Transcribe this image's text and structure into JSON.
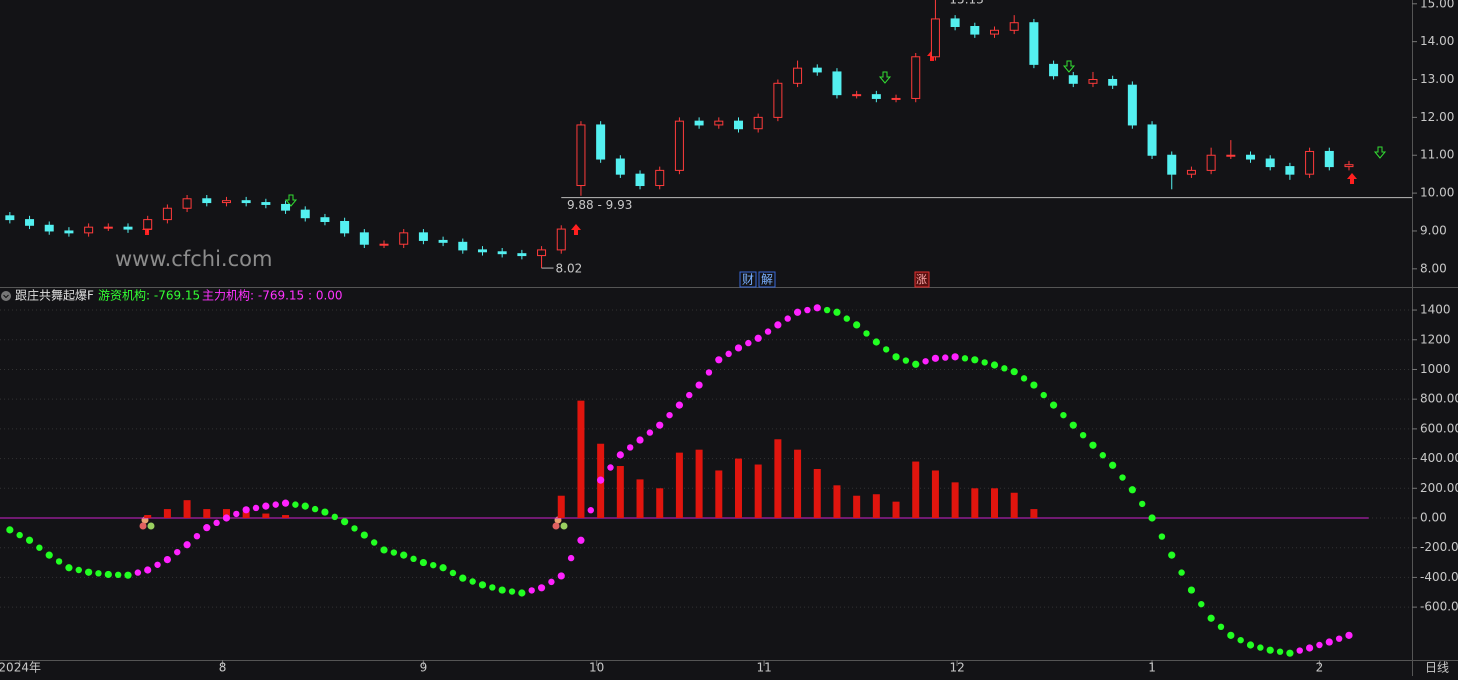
{
  "chart_data": [
    {
      "type": "candlestick",
      "open": [
        9.4,
        9.3,
        9.15,
        9.0,
        8.95,
        9.1,
        9.1,
        9.05,
        9.3,
        9.6,
        9.85,
        9.75,
        9.8,
        9.75,
        9.7,
        9.55,
        9.35,
        9.25,
        8.95,
        8.65,
        8.65,
        8.95,
        8.75,
        8.7,
        8.5,
        8.45,
        8.4,
        8.35,
        8.5,
        10.2,
        11.8,
        10.9,
        10.5,
        10.2,
        10.6,
        11.9,
        11.8,
        11.9,
        11.7,
        12.0,
        12.9,
        13.3,
        13.2,
        12.6,
        12.6,
        12.5,
        12.5,
        13.6,
        14.6,
        14.4,
        14.2,
        14.3,
        14.5,
        13.4,
        13.1,
        12.9,
        13.0,
        12.85,
        11.8,
        11.0,
        10.5,
        10.6,
        11.0,
        11.0,
        10.9,
        10.7,
        10.5,
        11.1,
        10.7
      ],
      "high": [
        9.5,
        9.4,
        9.25,
        9.1,
        9.2,
        9.2,
        9.2,
        9.4,
        9.7,
        9.95,
        9.95,
        9.9,
        9.9,
        9.85,
        9.8,
        9.65,
        9.45,
        9.35,
        9.05,
        8.75,
        9.05,
        9.05,
        8.85,
        8.8,
        8.6,
        8.55,
        8.5,
        8.6,
        9.15,
        11.9,
        11.9,
        11.0,
        10.6,
        10.7,
        12.0,
        12.0,
        12.0,
        12.0,
        12.1,
        13.0,
        13.5,
        13.4,
        13.3,
        12.7,
        12.7,
        12.6,
        13.7,
        15.13,
        14.7,
        14.5,
        14.4,
        14.7,
        14.6,
        13.5,
        13.2,
        13.2,
        13.1,
        12.95,
        11.9,
        11.1,
        10.7,
        11.2,
        11.4,
        11.1,
        11.0,
        10.8,
        11.2,
        11.2,
        10.85
      ],
      "low": [
        9.2,
        9.05,
        8.9,
        8.85,
        8.85,
        9.0,
        8.95,
        8.95,
        9.2,
        9.5,
        9.65,
        9.65,
        9.65,
        9.6,
        9.45,
        9.25,
        9.15,
        8.85,
        8.55,
        8.55,
        8.55,
        8.65,
        8.6,
        8.4,
        8.35,
        8.3,
        8.25,
        8.02,
        8.4,
        9.93,
        10.8,
        10.4,
        10.1,
        10.1,
        10.5,
        11.7,
        11.7,
        11.6,
        11.6,
        11.9,
        12.8,
        13.1,
        12.5,
        12.5,
        12.4,
        12.4,
        12.4,
        13.5,
        14.3,
        14.1,
        14.1,
        14.2,
        13.3,
        13.0,
        12.8,
        12.8,
        12.75,
        11.7,
        10.9,
        10.1,
        10.4,
        10.5,
        10.9,
        10.8,
        10.6,
        10.35,
        10.4,
        10.6,
        10.6
      ],
      "close": [
        9.3,
        9.15,
        9.0,
        8.95,
        9.1,
        9.1,
        9.05,
        9.3,
        9.6,
        9.85,
        9.75,
        9.8,
        9.75,
        9.7,
        9.55,
        9.35,
        9.25,
        8.95,
        8.65,
        8.65,
        8.95,
        8.75,
        8.7,
        8.5,
        8.45,
        8.4,
        8.35,
        8.5,
        9.05,
        11.8,
        10.9,
        10.5,
        10.2,
        10.6,
        11.9,
        11.8,
        11.9,
        11.7,
        12.0,
        12.9,
        13.3,
        13.2,
        12.6,
        12.6,
        12.5,
        12.5,
        13.6,
        14.6,
        14.4,
        14.2,
        14.3,
        14.5,
        13.4,
        13.1,
        12.9,
        13.0,
        12.85,
        11.8,
        11.0,
        10.5,
        10.6,
        11.0,
        11.0,
        10.9,
        10.7,
        10.5,
        11.1,
        10.7,
        10.75
      ],
      "up_color": "#ff3b3b",
      "down_color": "#54f0f0",
      "xlim": [
        -0.5,
        71.2
      ],
      "ylim": [
        7.52,
        15.1
      ],
      "yticks": [
        {
          "value": 8,
          "label": "8.00"
        },
        {
          "value": 9,
          "label": "9.00"
        },
        {
          "value": 10,
          "label": "10.00"
        },
        {
          "value": 11,
          "label": "11.00"
        },
        {
          "value": 12,
          "label": "12.00"
        },
        {
          "value": 13,
          "label": "13.00"
        },
        {
          "value": 14,
          "label": "14.00"
        },
        {
          "value": 15,
          "label": "15.00"
        }
      ],
      "gap_line": 9.88,
      "annotations": {
        "high": "15.13",
        "gap": "9.88 - 9.93",
        "low": "8.02"
      },
      "watermark": "www.cfchi.com",
      "markers": [
        "财",
        "解",
        "涨"
      ]
    },
    {
      "type": "combo",
      "title": "跟庄共舞起爆F",
      "legend": [
        "游资机构: -769.15",
        "主力机构: -769.15 : 0.00"
      ],
      "legend_colors": [
        "#33ff33",
        "#ff33ff"
      ],
      "bars": {
        "color": "#e0150e",
        "values": [
          null,
          null,
          null,
          null,
          null,
          null,
          null,
          20,
          60,
          120,
          60,
          60,
          40,
          30,
          20,
          null,
          null,
          null,
          null,
          null,
          null,
          null,
          null,
          null,
          null,
          null,
          null,
          null,
          150,
          790,
          500,
          350,
          260,
          200,
          440,
          460,
          320,
          400,
          360,
          530,
          460,
          330,
          220,
          150,
          160,
          110,
          380,
          320,
          240,
          200,
          200,
          170,
          60,
          null,
          null,
          null,
          null,
          null,
          null,
          null,
          null,
          null,
          null,
          null,
          null,
          null,
          null,
          null,
          null
        ]
      },
      "dots": {
        "up_color": "#ff22ff",
        "down_color": "#22ff22",
        "values": [
          -80,
          -150,
          -250,
          -335,
          -365,
          -380,
          -385,
          -350,
          -280,
          -180,
          -65,
          0,
          55,
          80,
          100,
          80,
          40,
          -25,
          -115,
          -215,
          -250,
          -300,
          -335,
          -405,
          -450,
          -485,
          -505,
          -470,
          -390,
          -150,
          255,
          425,
          525,
          625,
          760,
          895,
          1065,
          1145,
          1210,
          1300,
          1385,
          1415,
          1385,
          1300,
          1185,
          1085,
          1035,
          1075,
          1085,
          1065,
          1030,
          985,
          895,
          760,
          625,
          490,
          355,
          190,
          0,
          -250,
          -485,
          -675,
          -790,
          -855,
          -890,
          -910,
          -875,
          -835,
          -790
        ]
      },
      "zero_color": "#cc22cc",
      "xlim": [
        -0.5,
        71.2
      ],
      "ylim": [
        -956,
        1535
      ],
      "yticks": [
        1400,
        1200,
        1000,
        {
          "value": 800,
          "label": "800.00"
        },
        {
          "value": 600,
          "label": "600.00"
        },
        {
          "value": 400,
          "label": "400.00"
        },
        {
          "value": 200,
          "label": "200.00"
        },
        {
          "value": 0,
          "label": "0.00"
        },
        {
          "value": -200,
          "label": "-200.00"
        },
        {
          "value": -400,
          "label": "-400.00"
        },
        {
          "value": -600,
          "label": "-600.00"
        }
      ],
      "xticks": [
        {
          "value": 0.5,
          "label": "2024年"
        },
        {
          "value": 10.8,
          "label": "8"
        },
        {
          "value": 21,
          "label": "9"
        },
        {
          "value": 29.8,
          "label": "10"
        },
        {
          "value": 38.3,
          "label": "11"
        },
        {
          "value": 48.1,
          "label": "12"
        },
        {
          "value": 58,
          "label": "1"
        },
        {
          "value": 66.5,
          "label": "2"
        }
      ],
      "period_label": "日线"
    }
  ]
}
